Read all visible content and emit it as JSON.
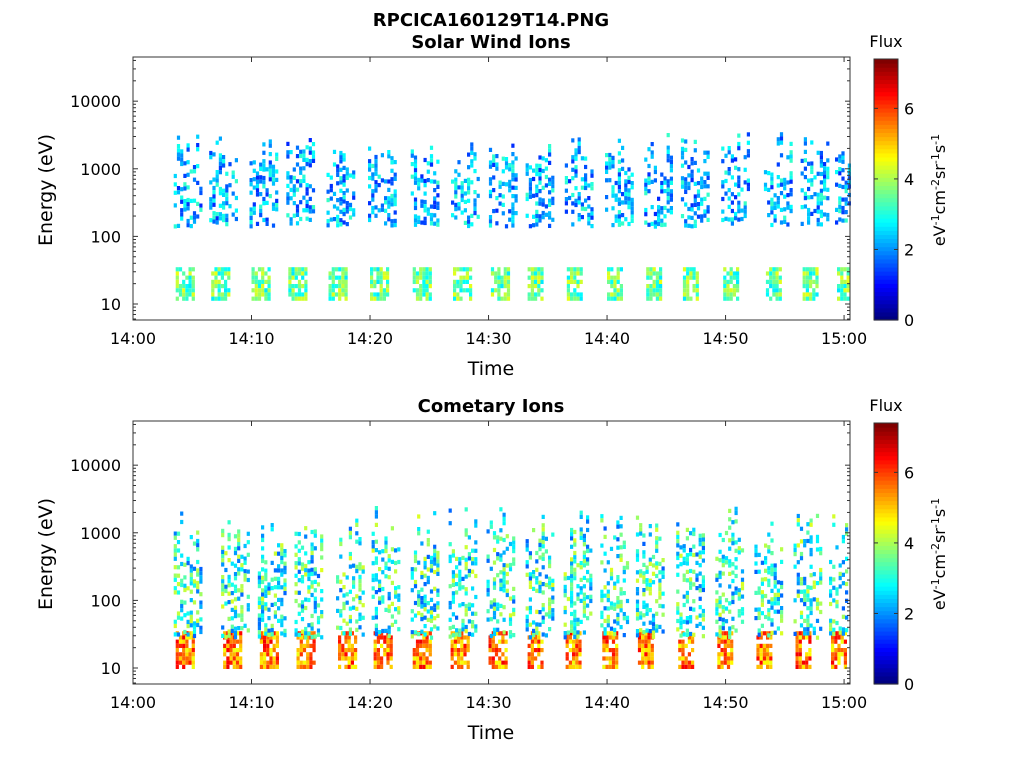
{
  "figure": {
    "title": "RPCICA160129T14.PNG"
  },
  "chart_data": [
    {
      "type": "heatmap",
      "title": "Solar Wind Ions",
      "xlabel": "Time",
      "ylabel": "Energy (eV)",
      "x_ticks": [
        "14:00",
        "14:10",
        "14:20",
        "14:30",
        "14:40",
        "14:50",
        "15:00"
      ],
      "x_range_minutes": [
        0,
        60.5
      ],
      "y_ticks": [
        "10",
        "100",
        "1000",
        "10000"
      ],
      "y_scale": "log",
      "y_range": [
        5.8,
        45000
      ],
      "colorbar": {
        "label": "Flux",
        "unit": "eV^-1cm^-2sr^-1s^-1",
        "ticks": [
          "0",
          "2",
          "4",
          "6"
        ],
        "range": [
          0,
          7.4
        ],
        "colormap": "jet"
      },
      "pattern": {
        "burst_start_minutes": [
          3.6,
          6.6,
          10.0,
          13.1,
          16.5,
          20.0,
          23.6,
          27.0,
          30.2,
          33.3,
          36.6,
          40.0,
          43.3,
          46.4,
          49.8,
          53.4,
          56.5,
          59.4
        ],
        "low_band_eV": [
          12,
          35
        ],
        "high_band_eV": [
          150,
          3500
        ],
        "low_band_flux": [
          2.6,
          4.5
        ],
        "high_band_flux": [
          1.2,
          3.2
        ]
      }
    },
    {
      "type": "heatmap",
      "title": "Cometary Ions",
      "xlabel": "Time",
      "ylabel": "Energy (eV)",
      "x_ticks": [
        "14:00",
        "14:10",
        "14:20",
        "14:30",
        "14:40",
        "14:50",
        "15:00"
      ],
      "x_range_minutes": [
        0,
        60.5
      ],
      "y_ticks": [
        "10",
        "100",
        "1000",
        "10000"
      ],
      "y_scale": "log",
      "y_range": [
        5.8,
        45000
      ],
      "colorbar": {
        "label": "Flux",
        "unit": "eV^-1cm^-2sr^-1s^-1",
        "ticks": [
          "0",
          "2",
          "4",
          "6"
        ],
        "range": [
          0,
          7.4
        ],
        "colormap": "jet"
      },
      "pattern": {
        "burst_start_minutes": [
          3.6,
          7.6,
          10.7,
          13.8,
          17.3,
          20.3,
          23.6,
          26.8,
          30.0,
          33.3,
          36.5,
          39.6,
          42.6,
          46.0,
          49.3,
          52.6,
          55.9,
          58.9
        ],
        "low_band_eV": [
          10,
          35
        ],
        "high_band_eV": [
          30,
          2500
        ],
        "low_band_flux": [
          4.5,
          6.6
        ],
        "high_band_flux": [
          1.6,
          4.4
        ]
      }
    }
  ]
}
